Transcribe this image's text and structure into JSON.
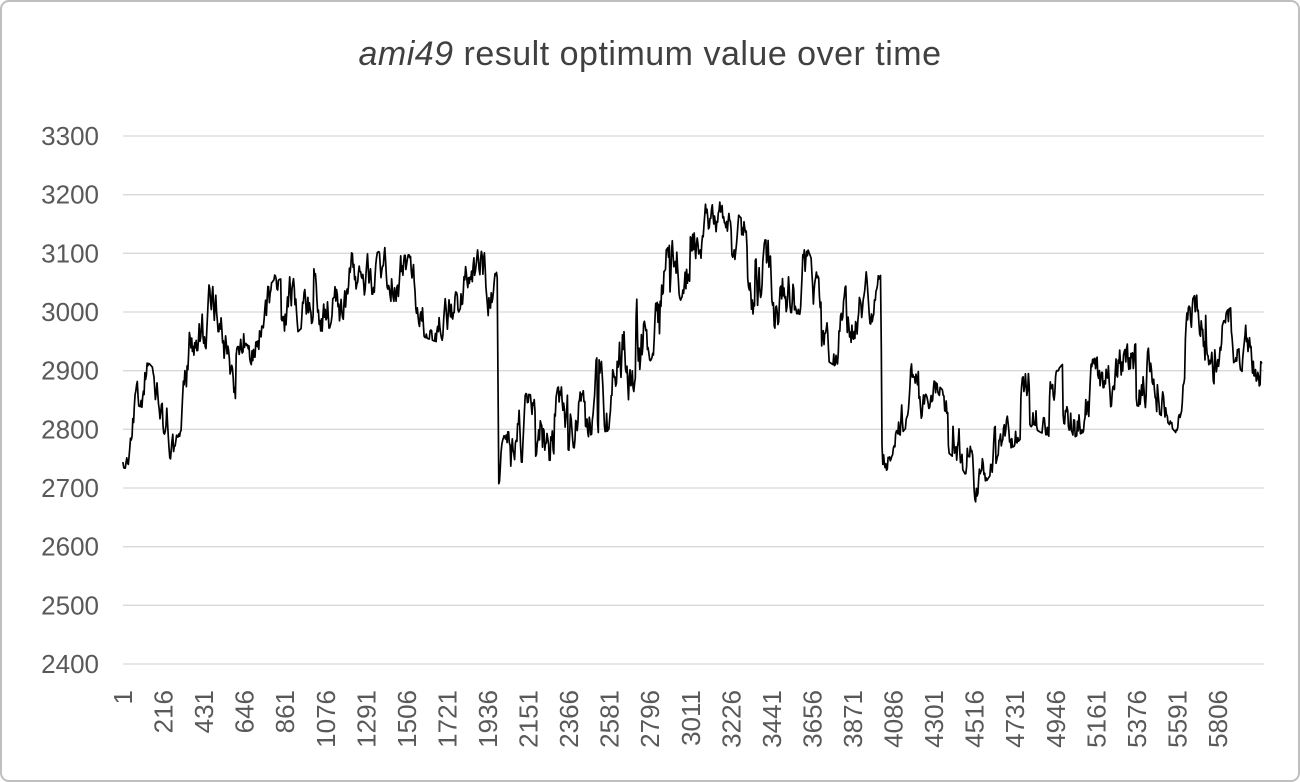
{
  "chart_data": {
    "type": "line",
    "title": "ami49 result optimum value over time",
    "title_italic": "ami49",
    "title_rest": " result optimum value over time",
    "xlabel": "",
    "ylabel": "",
    "ylim": [
      2400,
      3300
    ],
    "xlim": [
      1,
      6040
    ],
    "y_ticks": [
      3300,
      3200,
      3100,
      3000,
      2900,
      2800,
      2700,
      2600,
      2500,
      2400
    ],
    "x_ticks": [
      "1",
      "216",
      "431",
      "646",
      "861",
      "1076",
      "1291",
      "1506",
      "1721",
      "1936",
      "2151",
      "2366",
      "2581",
      "2796",
      "3011",
      "3226",
      "3441",
      "3656",
      "3871",
      "4086",
      "4301",
      "4516",
      "4731",
      "4946",
      "5161",
      "5376",
      "5591",
      "5806"
    ],
    "x_tick_interval": 215,
    "grid": true,
    "legend": false,
    "series_color": "#000000",
    "gridline_color": "#d9d9d9",
    "label_color": "#595959",
    "title_color": "#404040",
    "keypoints_format": "[iteration_x, optimum_value_center, local_noise_amplitude]",
    "keypoints": [
      [
        1,
        2745,
        12
      ],
      [
        30,
        2765,
        30
      ],
      [
        70,
        2880,
        38
      ],
      [
        140,
        2872,
        40
      ],
      [
        210,
        2845,
        42
      ],
      [
        250,
        2782,
        32
      ],
      [
        300,
        2775,
        30
      ],
      [
        340,
        2890,
        62
      ],
      [
        390,
        2978,
        62
      ],
      [
        470,
        3005,
        55
      ],
      [
        540,
        2950,
        50
      ],
      [
        600,
        2892,
        42
      ],
      [
        650,
        2918,
        55
      ],
      [
        700,
        2978,
        58
      ],
      [
        760,
        3022,
        55
      ],
      [
        830,
        3000,
        55
      ],
      [
        900,
        3012,
        55
      ],
      [
        970,
        3035,
        55
      ],
      [
        1040,
        3015,
        50
      ],
      [
        1110,
        3030,
        55
      ],
      [
        1180,
        3045,
        55
      ],
      [
        1250,
        3058,
        50
      ],
      [
        1320,
        3040,
        55
      ],
      [
        1390,
        3055,
        55
      ],
      [
        1460,
        3040,
        55
      ],
      [
        1530,
        3048,
        50
      ],
      [
        1600,
        3002,
        45
      ],
      [
        1680,
        2992,
        45
      ],
      [
        1740,
        3022,
        52
      ],
      [
        1800,
        3062,
        48
      ],
      [
        1870,
        3052,
        55
      ],
      [
        1930,
        3042,
        58
      ],
      [
        1985,
        3075,
        25
      ],
      [
        1993,
        2712,
        10
      ],
      [
        2010,
        2742,
        35
      ],
      [
        2090,
        2805,
        60
      ],
      [
        2170,
        2800,
        58
      ],
      [
        2250,
        2802,
        62
      ],
      [
        2330,
        2815,
        60
      ],
      [
        2410,
        2832,
        60
      ],
      [
        2490,
        2855,
        62
      ],
      [
        2570,
        2865,
        68
      ],
      [
        2650,
        2905,
        70
      ],
      [
        2730,
        2950,
        75
      ],
      [
        2810,
        3000,
        75
      ],
      [
        2890,
        3040,
        70
      ],
      [
        2970,
        3090,
        60
      ],
      [
        3050,
        3130,
        48
      ],
      [
        3130,
        3162,
        28
      ],
      [
        3210,
        3152,
        35
      ],
      [
        3290,
        3095,
        60
      ],
      [
        3370,
        3050,
        75
      ],
      [
        3450,
        3045,
        75
      ],
      [
        3530,
        3065,
        65
      ],
      [
        3610,
        3060,
        65
      ],
      [
        3690,
        2992,
        65
      ],
      [
        3780,
        2962,
        55
      ],
      [
        3870,
        3008,
        55
      ],
      [
        3960,
        3020,
        50
      ],
      [
        4018,
        3040,
        22
      ],
      [
        4026,
        2728,
        10
      ],
      [
        4050,
        2772,
        42
      ],
      [
        4120,
        2845,
        55
      ],
      [
        4190,
        2865,
        48
      ],
      [
        4250,
        2850,
        45
      ],
      [
        4310,
        2835,
        45
      ],
      [
        4370,
        2810,
        48
      ],
      [
        4430,
        2790,
        45
      ],
      [
        4480,
        2760,
        45
      ],
      [
        4520,
        2712,
        38
      ],
      [
        4575,
        2755,
        45
      ],
      [
        4635,
        2785,
        45
      ],
      [
        4695,
        2800,
        40
      ],
      [
        4755,
        2832,
        50
      ],
      [
        4805,
        2855,
        48
      ],
      [
        4865,
        2845,
        50
      ],
      [
        4925,
        2838,
        52
      ],
      [
        4985,
        2862,
        50
      ],
      [
        5045,
        2842,
        55
      ],
      [
        5105,
        2855,
        58
      ],
      [
        5165,
        2868,
        55
      ],
      [
        5225,
        2888,
        50
      ],
      [
        5285,
        2880,
        55
      ],
      [
        5345,
        2898,
        55
      ],
      [
        5405,
        2890,
        52
      ],
      [
        5465,
        2885,
        50
      ],
      [
        5525,
        2868,
        50
      ],
      [
        5585,
        2848,
        55
      ],
      [
        5645,
        2940,
        65
      ],
      [
        5705,
        2988,
        55
      ],
      [
        5755,
        2950,
        50
      ],
      [
        5805,
        2908,
        45
      ],
      [
        5855,
        2948,
        55
      ],
      [
        5905,
        2962,
        52
      ],
      [
        5955,
        2938,
        48
      ],
      [
        6005,
        2910,
        40
      ],
      [
        6040,
        2888,
        22
      ]
    ],
    "noise": {
      "seed": 13,
      "step": 4,
      "walk": 0.55,
      "jump_prob": 0.09
    }
  }
}
